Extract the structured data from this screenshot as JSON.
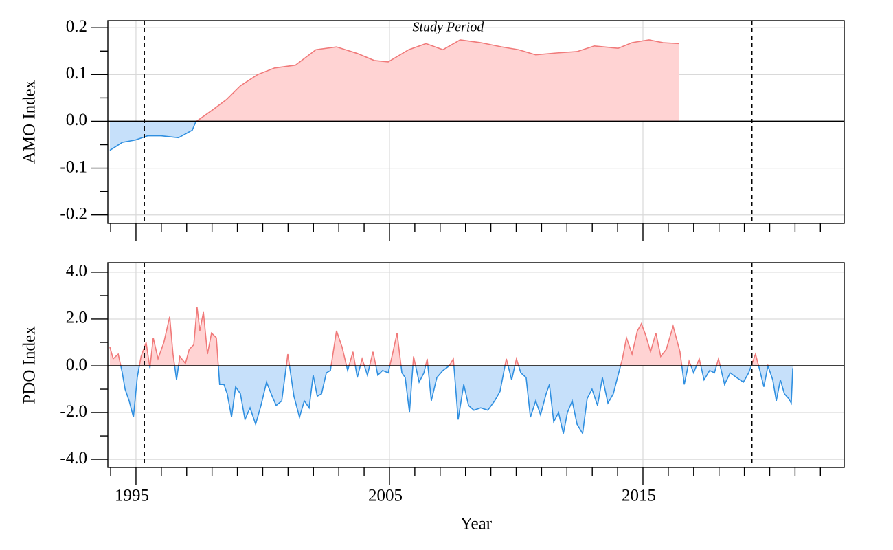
{
  "chart_data": [
    {
      "type": "area",
      "ylabel": "AMO Index",
      "annotation": "Study Period",
      "x": [
        1993.97,
        1994.46,
        1994.97,
        1995.46,
        1995.99,
        1996.68,
        1997.22,
        1997.36,
        1998.04,
        1998.58,
        1999.12,
        1999.8,
        2000.47,
        2001.29,
        2002.1,
        2002.91,
        2003.73,
        2004.4,
        2004.95,
        2005.76,
        2006.44,
        2007.11,
        2007.79,
        2008.6,
        2009.42,
        2010.09,
        2010.77,
        2011.59,
        2012.4,
        2013.08,
        2014.02,
        2014.57,
        2015.24,
        2015.79,
        2016.41
      ],
      "values": [
        -0.062,
        -0.045,
        -0.04,
        -0.031,
        -0.031,
        -0.035,
        -0.019,
        -0.001,
        0.025,
        0.047,
        0.076,
        0.1,
        0.114,
        0.12,
        0.153,
        0.159,
        0.145,
        0.13,
        0.127,
        0.153,
        0.166,
        0.153,
        0.174,
        0.168,
        0.159,
        0.153,
        0.142,
        0.146,
        0.149,
        0.161,
        0.156,
        0.168,
        0.174,
        0.168,
        0.166
      ],
      "positive_color": "#f07a7a",
      "positive_fill": "#ffd3d3",
      "negative_color": "#2f8fe0",
      "negative_fill": "#c6e0fa",
      "xlim": [
        1993.89,
        2022.94
      ],
      "xticks": [
        1995,
        2005,
        2015
      ],
      "xtick_labels": false,
      "xminor_ticks": [
        1994,
        1996,
        1997,
        1998,
        1999,
        2000,
        2001,
        2002,
        2003,
        2004,
        2006,
        2007,
        2008,
        2009,
        2010,
        2011,
        2012,
        2013,
        2014,
        2016,
        2017,
        2018,
        2019,
        2020,
        2021,
        2022
      ],
      "ylim": [
        -0.218,
        0.215
      ],
      "yticks": [
        0.2,
        0.1,
        {
          "value": 0,
          "label": "0.0"
        },
        -0.1,
        -0.2
      ],
      "yminor_ticks": [
        0.15,
        0.05,
        -0.05,
        -0.15
      ],
      "vlines": [
        1995.33,
        2019.3
      ],
      "grid": true
    },
    {
      "type": "area",
      "ylabel": "PDO Index",
      "xlabel": "Year",
      "x": [
        1993.97,
        1994.1,
        1994.3,
        1994.46,
        1994.57,
        1994.73,
        1994.9,
        1995.05,
        1995.2,
        1995.4,
        1995.55,
        1995.68,
        1995.87,
        1996.1,
        1996.33,
        1996.46,
        1996.6,
        1996.73,
        1996.95,
        1997.1,
        1997.28,
        1997.41,
        1997.52,
        1997.66,
        1997.82,
        1997.98,
        1998.17,
        1998.3,
        1998.47,
        1998.6,
        1998.77,
        1998.93,
        1999.12,
        1999.3,
        1999.5,
        1999.72,
        1999.93,
        2000.15,
        2000.37,
        2000.53,
        2000.75,
        2000.99,
        2001.23,
        2001.45,
        2001.64,
        2001.83,
        2001.99,
        2002.15,
        2002.32,
        2002.51,
        2002.67,
        2002.91,
        2003.13,
        2003.35,
        2003.56,
        2003.73,
        2003.92,
        2004.13,
        2004.35,
        2004.54,
        2004.73,
        2004.95,
        2005.14,
        2005.3,
        2005.49,
        2005.62,
        2005.79,
        2005.95,
        2006.17,
        2006.36,
        2006.49,
        2006.65,
        2006.87,
        2007.11,
        2007.36,
        2007.52,
        2007.71,
        2007.93,
        2008.12,
        2008.33,
        2008.6,
        2008.88,
        2009.15,
        2009.36,
        2009.61,
        2009.82,
        2010.01,
        2010.18,
        2010.39,
        2010.56,
        2010.77,
        2010.96,
        2011.18,
        2011.31,
        2011.48,
        2011.67,
        2011.86,
        2012.02,
        2012.21,
        2012.4,
        2012.62,
        2012.8,
        2012.99,
        2013.21,
        2013.4,
        2013.62,
        2013.83,
        2014.02,
        2014.19,
        2014.35,
        2014.57,
        2014.78,
        2014.94,
        2015.11,
        2015.3,
        2015.51,
        2015.7,
        2015.92,
        2016.19,
        2016.46,
        2016.63,
        2016.82,
        2017.0,
        2017.22,
        2017.41,
        2017.63,
        2017.82,
        2017.98,
        2018.22,
        2018.44,
        2018.69,
        2018.96,
        2019.17,
        2019.44,
        2019.61,
        2019.77,
        2019.93,
        2020.12,
        2020.26,
        2020.42,
        2020.58,
        2020.75,
        2020.85,
        2020.91
      ],
      "values": [
        0.8,
        0.3,
        0.5,
        -0.3,
        -1.0,
        -1.5,
        -2.2,
        -0.5,
        0.4,
        1.0,
        -0.1,
        1.2,
        0.3,
        1.0,
        2.1,
        0.5,
        -0.6,
        0.4,
        0.1,
        0.7,
        0.9,
        2.5,
        1.5,
        2.3,
        0.5,
        1.4,
        1.2,
        -0.8,
        -0.8,
        -1.2,
        -2.2,
        -0.9,
        -1.2,
        -2.3,
        -1.8,
        -2.5,
        -1.7,
        -0.7,
        -1.3,
        -1.7,
        -1.5,
        0.5,
        -1.3,
        -2.2,
        -1.5,
        -1.8,
        -0.4,
        -1.3,
        -1.2,
        -0.3,
        -0.2,
        1.5,
        0.8,
        -0.2,
        0.6,
        -0.5,
        0.3,
        -0.4,
        0.6,
        -0.4,
        -0.2,
        -0.3,
        0.6,
        1.4,
        -0.3,
        -0.5,
        -2.0,
        0.4,
        -0.7,
        -0.3,
        0.3,
        -1.5,
        -0.5,
        -0.2,
        0.0,
        0.3,
        -2.3,
        -0.8,
        -1.7,
        -1.9,
        -1.8,
        -1.9,
        -1.5,
        -1.1,
        0.3,
        -0.6,
        0.3,
        -0.3,
        -0.5,
        -2.2,
        -1.5,
        -2.1,
        -1.2,
        -0.8,
        -2.4,
        -2.0,
        -2.9,
        -2.0,
        -1.5,
        -2.5,
        -2.9,
        -1.4,
        -1.0,
        -1.7,
        -0.5,
        -1.6,
        -1.2,
        -0.4,
        0.3,
        1.2,
        0.5,
        1.5,
        1.8,
        1.3,
        0.6,
        1.4,
        0.4,
        0.7,
        1.7,
        0.6,
        -0.8,
        0.2,
        -0.3,
        0.3,
        -0.6,
        -0.2,
        -0.3,
        0.3,
        -0.8,
        -0.3,
        -0.5,
        -0.7,
        -0.3,
        0.5,
        -0.2,
        -0.9,
        0.0,
        -0.6,
        -1.5,
        -0.6,
        -1.2,
        -1.4,
        -1.6,
        -0.1
      ],
      "positive_color": "#f07a7a",
      "positive_fill": "#ffd3d3",
      "negative_color": "#2f8fe0",
      "negative_fill": "#c6e0fa",
      "xlim": [
        1993.89,
        2022.94
      ],
      "xticks": [
        1995,
        2005,
        2015
      ],
      "xtick_labels": true,
      "xminor_ticks": [
        1994,
        1996,
        1997,
        1998,
        1999,
        2000,
        2001,
        2002,
        2003,
        2004,
        2006,
        2007,
        2008,
        2009,
        2010,
        2011,
        2012,
        2013,
        2014,
        2016,
        2017,
        2018,
        2019,
        2020,
        2021,
        2022
      ],
      "ylim": [
        -4.35,
        4.41
      ],
      "yticks": [
        {
          "value": 4,
          "label": "4.0"
        },
        {
          "value": 2,
          "label": "2.0"
        },
        {
          "value": 0,
          "label": "0.0"
        },
        {
          "value": -2,
          "label": "-2.0"
        },
        {
          "value": -4,
          "label": "-4.0"
        }
      ],
      "yminor_ticks": [
        3,
        1,
        -1,
        -3
      ],
      "vlines": [
        1995.33,
        2019.3
      ],
      "grid": true
    }
  ]
}
